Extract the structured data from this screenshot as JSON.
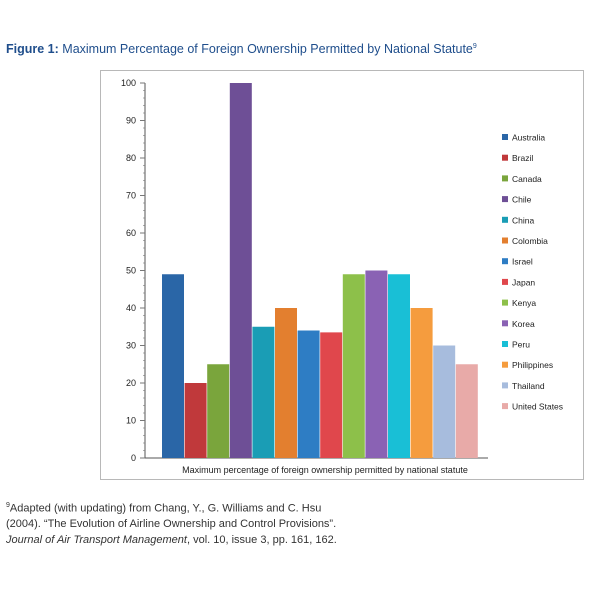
{
  "figure": {
    "label": "Figure 1:",
    "title": "Maximum Percentage of Foreign Ownership Permitted by National Statute",
    "footnote_ref": "9"
  },
  "footnote": {
    "marker": "9",
    "text_before_journal": "Adapted (with updating) from Chang, Y., G. Williams and C. Hsu (2004). “The Evolution of Airline Ownership and Control Provisions”. ",
    "journal": "Journal of Air Transport Management",
    "text_after_journal": ", vol. 10, issue 3, pp. 161, 162."
  },
  "colors": {
    "title": "#1f4e8c"
  },
  "chart_data": {
    "type": "bar",
    "title": "",
    "xlabel": "Maximum percentage of foreign ownership permitted by national statute",
    "ylabel": "",
    "ylim": [
      0,
      100
    ],
    "yticks": [
      0,
      10,
      20,
      30,
      40,
      50,
      60,
      70,
      80,
      90,
      100
    ],
    "grid": false,
    "legend_position": "right",
    "series": [
      {
        "name": "Australia",
        "value": 49,
        "color": "#2a66a7"
      },
      {
        "name": "Brazil",
        "value": 20,
        "color": "#c0393b"
      },
      {
        "name": "Canada",
        "value": 25,
        "color": "#7aa53c"
      },
      {
        "name": "Chile",
        "value": 100,
        "color": "#6e4f96"
      },
      {
        "name": "China",
        "value": 35,
        "color": "#1a9db5"
      },
      {
        "name": "Colombia",
        "value": 40,
        "color": "#e37f2f"
      },
      {
        "name": "Israel",
        "value": 34,
        "color": "#2e7dc4"
      },
      {
        "name": "Japan",
        "value": 33.5,
        "color": "#e0474c"
      },
      {
        "name": "Kenya",
        "value": 49,
        "color": "#8dc04a"
      },
      {
        "name": "Korea",
        "value": 50,
        "color": "#8a62b4"
      },
      {
        "name": "Peru",
        "value": 49,
        "color": "#19bfd6"
      },
      {
        "name": "Philippines",
        "value": 40,
        "color": "#f59c3e"
      },
      {
        "name": "Thailand",
        "value": 30,
        "color": "#a7bcdd"
      },
      {
        "name": "United States",
        "value": 25,
        "color": "#e8aaa8"
      }
    ]
  }
}
